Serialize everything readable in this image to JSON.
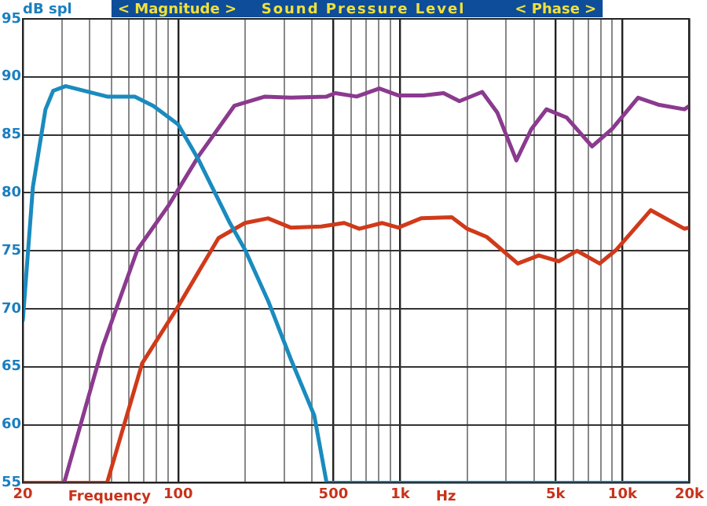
{
  "chart_data": {
    "type": "line",
    "title": "Sound Pressure Level",
    "ylabel": "dB spl",
    "xlabel": "Frequency",
    "annotations": [
      "< Magnitude >",
      "< Phase >",
      "Hz"
    ],
    "log": "x",
    "grid": true,
    "legend": false,
    "xlim": [
      20,
      20000
    ],
    "ylim": [
      55,
      95
    ],
    "xticks": [
      20,
      {
        "value": 30,
        "label": null
      },
      {
        "value": 40,
        "label": null
      },
      {
        "value": 50,
        "label": null
      },
      {
        "value": 60,
        "label": null
      },
      {
        "value": 70,
        "label": null
      },
      {
        "value": 80,
        "label": null
      },
      {
        "value": 90,
        "label": null
      },
      100,
      {
        "value": 200,
        "label": null
      },
      {
        "value": 300,
        "label": null
      },
      {
        "value": 400,
        "label": null
      },
      500,
      {
        "value": 600,
        "label": null
      },
      {
        "value": 700,
        "label": null
      },
      {
        "value": 800,
        "label": null
      },
      {
        "value": 900,
        "label": null
      },
      {
        "value": 1000,
        "label": "1k"
      },
      {
        "value": 2000,
        "label": null
      },
      {
        "value": 3000,
        "label": null
      },
      {
        "value": 4000,
        "label": null
      },
      {
        "value": 5000,
        "label": "5k"
      },
      {
        "value": 6000,
        "label": null
      },
      {
        "value": 7000,
        "label": null
      },
      {
        "value": 8000,
        "label": null
      },
      {
        "value": 9000,
        "label": null
      },
      {
        "value": 10000,
        "label": "10k"
      },
      {
        "value": 20000,
        "label": "20k"
      }
    ],
    "yticks": [
      55,
      60,
      65,
      70,
      75,
      80,
      85,
      90,
      95
    ],
    "series": [
      {
        "color": "#1a8bbf",
        "x": [
          20,
          22.2,
          25.3,
          27.4,
          31.2,
          47.9,
          63.8,
          77.3,
          100,
          124,
          171,
          200,
          254,
          321,
          410,
          466,
          20000
        ],
        "values": [
          69,
          80.5,
          87.2,
          88.8,
          89.2,
          88.3,
          88.3,
          87.5,
          85.9,
          82.8,
          77.4,
          75.1,
          70.7,
          65.7,
          60.8,
          55,
          55
        ]
      },
      {
        "color": "#8b3a8f",
        "x": [
          30.7,
          45.7,
          65.6,
          90.5,
          124,
          179,
          246,
          321,
          466,
          510,
          636,
          805,
          979,
          1275,
          1566,
          1846,
          2337,
          2737,
          3330,
          3892,
          4550,
          5600,
          7300,
          8980,
          11760,
          14500,
          19000,
          20000
        ],
        "values": [
          55,
          66.7,
          75.1,
          78.9,
          83.2,
          87.5,
          88.3,
          88.2,
          88.3,
          88.6,
          88.3,
          89,
          88.4,
          88.4,
          88.6,
          87.9,
          88.7,
          86.9,
          82.8,
          85.5,
          87.2,
          86.5,
          84,
          85.5,
          88.2,
          87.6,
          87.2,
          87.5
        ]
      },
      {
        "color": "#d03a1a",
        "x": [
          20,
          47.9,
          68.9,
          100,
          152,
          200,
          254,
          321,
          441,
          559,
          654,
          830,
          979,
          1240,
          1706,
          2000,
          2450,
          3380,
          4200,
          5170,
          6250,
          7900,
          9400,
          13400,
          19000,
          20000
        ],
        "values": [
          55,
          55,
          65.3,
          70.2,
          76.1,
          77.4,
          77.8,
          77,
          77.1,
          77.4,
          76.9,
          77.4,
          77,
          77.8,
          77.9,
          76.9,
          76.2,
          73.9,
          74.6,
          74.1,
          75,
          73.9,
          75.1,
          78.5,
          76.9,
          77
        ]
      }
    ]
  }
}
